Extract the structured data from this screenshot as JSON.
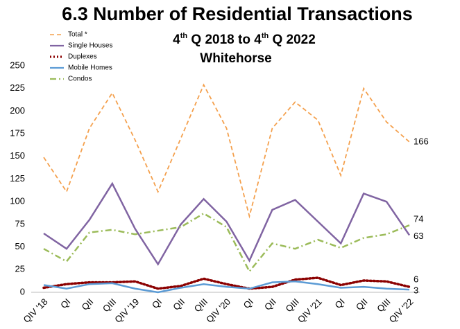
{
  "chart_data": {
    "type": "line",
    "title": "6.3 Number of Residential Transactions",
    "subtitle": "4th Q 2018 to 4th Q 2022",
    "location": "Whitehorse",
    "categories": [
      "QIV '18",
      "QI",
      "QII",
      "QIII",
      "QIV '19",
      "QI",
      "QII",
      "QIII",
      "QIV '20",
      "QI",
      "QII",
      "QIII",
      "QIV '21",
      "QI",
      "QII",
      "QIII",
      "QIV '22"
    ],
    "series": [
      {
        "name": "Total *",
        "color": "#f4a04d",
        "dash": "dashed",
        "values": [
          149,
          111,
          181,
          220,
          168,
          111,
          170,
          229,
          181,
          84,
          181,
          210,
          190,
          129,
          225,
          188,
          166
        ]
      },
      {
        "name": "Single Houses",
        "color": "#8064a2",
        "dash": "solid",
        "values": [
          65,
          48,
          80,
          120,
          70,
          31,
          75,
          103,
          78,
          35,
          91,
          102,
          78,
          54,
          109,
          100,
          63
        ]
      },
      {
        "name": "Duplexes",
        "color": "#8b0000",
        "dash": "dotted",
        "values": [
          5,
          9,
          11,
          11,
          12,
          4,
          7,
          15,
          9,
          4,
          6,
          14,
          16,
          8,
          13,
          12,
          6
        ]
      },
      {
        "name": "Mobile Homes",
        "color": "#5b9bd5",
        "dash": "solid",
        "values": [
          8,
          4,
          9,
          10,
          4,
          0,
          5,
          9,
          6,
          4,
          11,
          12,
          9,
          5,
          6,
          4,
          3
        ]
      },
      {
        "name": "Condos",
        "color": "#9bbb59",
        "dash": "dash-dot",
        "values": [
          48,
          34,
          66,
          69,
          64,
          68,
          72,
          87,
          72,
          23,
          54,
          48,
          58,
          49,
          60,
          64,
          74
        ]
      }
    ],
    "ylim": [
      0,
      250
    ],
    "yticks": [
      0,
      25,
      50,
      75,
      100,
      125,
      150,
      175,
      200,
      225,
      250
    ],
    "grid": false,
    "legend": "upper left"
  }
}
